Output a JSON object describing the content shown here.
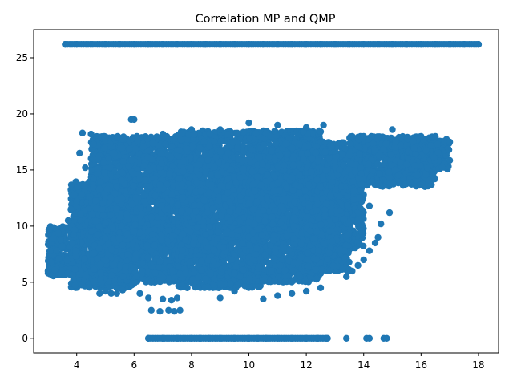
{
  "chart_data": {
    "type": "scatter",
    "title": "Correlation MP and QMP",
    "xlabel": "",
    "ylabel": "",
    "xlim": [
      2.5,
      18.7
    ],
    "ylim": [
      -1.3,
      27.5
    ],
    "xticks": [
      4,
      6,
      8,
      10,
      12,
      14,
      16,
      18
    ],
    "yticks": [
      0,
      5,
      10,
      15,
      20,
      25
    ],
    "grid": false,
    "legend": "none",
    "marker_color": "#1f77b4",
    "series": [
      {
        "points": [
          [
            3.6,
            26.2
          ],
          [
            4.0,
            26.2
          ],
          [
            4.5,
            26.2
          ],
          [
            5.0,
            26.2
          ],
          [
            5.5,
            26.2
          ],
          [
            6.0,
            26.2
          ],
          [
            6.5,
            26.2
          ],
          [
            7.0,
            26.2
          ],
          [
            7.5,
            26.2
          ],
          [
            8.0,
            26.2
          ],
          [
            8.5,
            26.2
          ],
          [
            9.0,
            26.2
          ],
          [
            9.5,
            26.2
          ],
          [
            10.0,
            26.2
          ],
          [
            10.5,
            26.2
          ],
          [
            11.0,
            26.2
          ],
          [
            11.5,
            26.2
          ],
          [
            12.0,
            26.2
          ],
          [
            12.5,
            26.2
          ],
          [
            13.0,
            26.2
          ],
          [
            13.5,
            26.2
          ],
          [
            14.0,
            26.2
          ],
          [
            14.5,
            26.2
          ],
          [
            15.0,
            26.2
          ],
          [
            15.5,
            26.2
          ],
          [
            16.0,
            26.2
          ],
          [
            16.5,
            26.2
          ],
          [
            17.0,
            26.2
          ],
          [
            17.5,
            26.2
          ],
          [
            18.0,
            26.2
          ],
          [
            6.5,
            0
          ],
          [
            7.0,
            0
          ],
          [
            7.5,
            0
          ],
          [
            8.0,
            0
          ],
          [
            8.3,
            0
          ],
          [
            8.6,
            0
          ],
          [
            9.0,
            0
          ],
          [
            9.5,
            0
          ],
          [
            10.0,
            0
          ],
          [
            10.3,
            0
          ],
          [
            10.6,
            0
          ],
          [
            11.0,
            0
          ],
          [
            11.5,
            0
          ],
          [
            12.0,
            0
          ],
          [
            12.4,
            0
          ],
          [
            12.7,
            0
          ],
          [
            13.4,
            0
          ],
          [
            14.1,
            0
          ],
          [
            14.2,
            0
          ],
          [
            14.7,
            0
          ],
          [
            14.8,
            0
          ],
          [
            6.6,
            2.5
          ],
          [
            6.9,
            2.4
          ],
          [
            7.2,
            2.5
          ],
          [
            7.4,
            2.4
          ],
          [
            7.6,
            2.5
          ],
          [
            6.5,
            3.6
          ],
          [
            7.0,
            3.5
          ],
          [
            7.3,
            3.4
          ],
          [
            7.5,
            3.6
          ],
          [
            3.0,
            6.0
          ],
          [
            3.1,
            6.8
          ],
          [
            3.3,
            7.8
          ],
          [
            3.5,
            8.2
          ],
          [
            3.7,
            10.5
          ],
          [
            3.8,
            11.5
          ],
          [
            4.0,
            12.2
          ],
          [
            4.2,
            18.3
          ],
          [
            4.5,
            18.2
          ],
          [
            4.1,
            16.5
          ],
          [
            4.3,
            15.2
          ],
          [
            5.9,
            19.5
          ],
          [
            6.0,
            19.5
          ],
          [
            6.1,
            18.0
          ],
          [
            13.6,
            18.0
          ],
          [
            14.0,
            18.0
          ],
          [
            15.0,
            18.6
          ],
          [
            16.0,
            18.0
          ],
          [
            16.5,
            18.0
          ],
          [
            17.0,
            17.5
          ],
          [
            15.5,
            15.5
          ],
          [
            10.0,
            19.2
          ],
          [
            11.0,
            19.0
          ],
          [
            12.0,
            18.8
          ],
          [
            12.6,
            19.0
          ],
          [
            9.0,
            18.6
          ],
          [
            8.0,
            18.6
          ],
          [
            7.0,
            18.2
          ],
          [
            10.5,
            3.5
          ],
          [
            11.0,
            3.8
          ],
          [
            11.5,
            4.0
          ],
          [
            12.0,
            4.2
          ],
          [
            12.5,
            4.5
          ],
          [
            9.0,
            3.6
          ],
          [
            9.5,
            4.2
          ],
          [
            13.4,
            5.5
          ],
          [
            13.6,
            6.0
          ],
          [
            13.8,
            6.5
          ],
          [
            14.0,
            7.0
          ],
          [
            14.2,
            7.8
          ],
          [
            14.4,
            8.5
          ],
          [
            14.5,
            9.0
          ],
          [
            14.6,
            10.2
          ],
          [
            14.2,
            11.8
          ],
          [
            14.9,
            11.2
          ],
          [
            4.8,
            4.0
          ],
          [
            5.0,
            4.2
          ],
          [
            5.2,
            4.0
          ],
          [
            5.4,
            4.0
          ],
          [
            5.6,
            4.3
          ],
          [
            6.2,
            4.0
          ]
        ]
      }
    ],
    "dense_regions": [
      {
        "xmin": 3.8,
        "xmax": 6.0,
        "ymin": 4.5,
        "ymax": 14.0
      },
      {
        "xmin": 4.5,
        "xmax": 8.0,
        "ymin": 5.0,
        "ymax": 18.0
      },
      {
        "xmin": 7.5,
        "xmax": 10.5,
        "ymin": 4.5,
        "ymax": 18.5
      },
      {
        "xmin": 10.0,
        "xmax": 12.5,
        "ymin": 5.0,
        "ymax": 18.5
      },
      {
        "xmin": 11.5,
        "xmax": 14.0,
        "ymin": 8.0,
        "ymax": 17.5
      },
      {
        "xmin": 13.5,
        "xmax": 16.5,
        "ymin": 13.5,
        "ymax": 18.0
      },
      {
        "xmin": 15.5,
        "xmax": 17.0,
        "ymin": 15.0,
        "ymax": 17.8
      },
      {
        "xmin": 3.0,
        "xmax": 4.0,
        "ymin": 5.5,
        "ymax": 10.0
      },
      {
        "xmin": 12.0,
        "xmax": 13.5,
        "ymin": 6.0,
        "ymax": 12.0
      }
    ]
  }
}
